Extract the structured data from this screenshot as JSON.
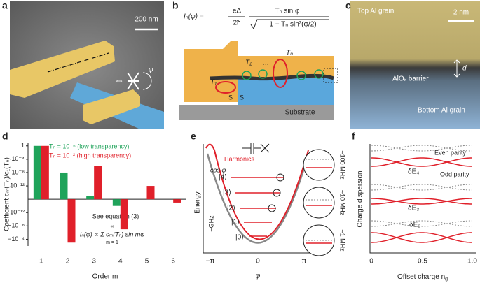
{
  "panels": {
    "a": {
      "label": "a",
      "scale_bar": "200 nm",
      "phi": "φ"
    },
    "b": {
      "label": "b",
      "formula": {
        "lhs": "Iₙ(φ) =",
        "prefactor_num": "eΔ",
        "prefactor_den": "2ħ",
        "numerator": "Tₙ sin φ",
        "denominator": "1 − Tₙ sin²(φ/2)"
      },
      "channels": [
        "T₂",
        "Tₙ",
        "T₁"
      ],
      "dots": "...",
      "electrodes": [
        "S",
        "S"
      ],
      "substrate": "Substrate"
    },
    "c": {
      "label": "c",
      "top": "Top Al grain",
      "scale_bar": "2 nm",
      "barrier": "AlOₓ barrier",
      "thickness": "d",
      "bottom": "Bottom Al grain"
    },
    "d": {
      "label": "d",
      "note": "See equation (3)",
      "formula": "Iₙ(φ) ∝ Σ cₘ(Tₙ) sin mφ",
      "sum_top": "∞",
      "sum_bottom": "m = 1"
    },
    "e": {
      "label": "e",
      "y_label": "Energy",
      "x_label": "φ",
      "xticks": [
        "−π",
        "0",
        "π"
      ],
      "cos": "cos φ",
      "harmonics": "Harmonics",
      "levels": [
        "|4⟩",
        "|3⟩",
        "|2⟩",
        "|1⟩",
        "|0⟩"
      ],
      "ghz": "~GHz",
      "scales": [
        "~100 MHz",
        "~10 MHz",
        "~1 MHz"
      ]
    },
    "f": {
      "label": "f",
      "y_label": "Charge dispersion",
      "x_label": [
        "Offset charge n",
        "g"
      ],
      "xticks": [
        "0",
        "0.5",
        "1.0"
      ],
      "even": "Even parity",
      "odd": "Odd parity",
      "deltas": [
        "δE₄",
        "δE₃",
        "δE₂"
      ]
    }
  },
  "chart_data": {
    "type": "bar",
    "x_label": "Order m",
    "y_label": "Coefficient cₘ(Tₙ)/c₁(Tₙ)",
    "categories": [
      "1",
      "2",
      "3",
      "4",
      "5",
      "6"
    ],
    "series": [
      {
        "name": "Tₙ = 10⁻⁶ (low transparency)",
        "color": "#1fa35a",
        "values": [
          1,
          1e-08,
          1e-15,
          -1e-14,
          null,
          null
        ]
      },
      {
        "name": "Tₙ = 10⁻² (high transparency)",
        "color": "#e0202a",
        "values": [
          1,
          -0.001,
          1e-06,
          -1e-07,
          1e-12,
          -1e-15
        ]
      }
    ],
    "yscale": "symlog",
    "linthresh": 1e-16,
    "ylim": [
      -0.01,
      10
    ],
    "yticks": [
      1,
      {
        "value": 0.0001,
        "label": "10⁻⁴"
      },
      {
        "value": 1e-08,
        "label": "10⁻⁸"
      },
      {
        "value": 1e-12,
        "label": "10⁻¹²"
      },
      {
        "value": -1e-12,
        "label": "−10⁻¹²"
      },
      {
        "value": -1e-08,
        "label": "−10⁻⁸"
      },
      {
        "value": -0.0001,
        "label": "−10⁻⁴"
      }
    ]
  }
}
